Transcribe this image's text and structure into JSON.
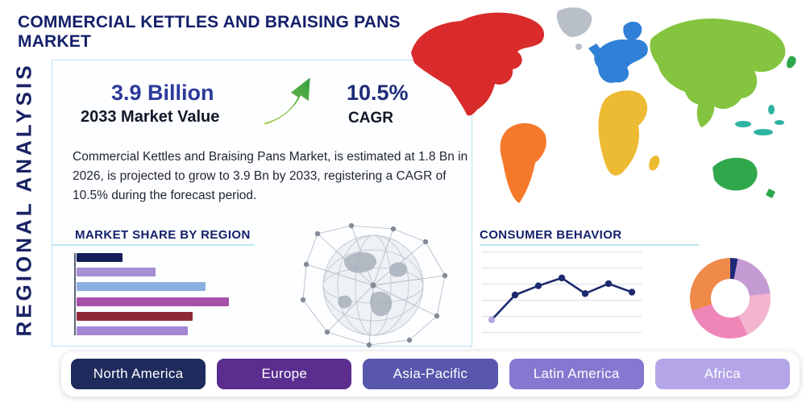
{
  "header": {
    "title": "COMMERCIAL KETTLES AND BRAISING PANS MARKET"
  },
  "side_label": "REGIONAL ANALYSIS",
  "stats": {
    "market_value": "3.9 Billion",
    "market_value_label": "2033 Market Value",
    "cagr_value": "10.5%",
    "cagr_label": "CAGR"
  },
  "description": "Commercial Kettles and Braising Pans Market, is estimated at 1.8 Bn in 2026, is projected to grow to 3.9 Bn by 2033, registering a CAGR of 10.5% during the forecast period.",
  "section_titles": {
    "market_share": "MARKET SHARE BY REGION",
    "consumer_behavior": "CONSUMER BEHAVIOR"
  },
  "region_buttons": [
    {
      "label": "North America",
      "color": "#1e2b5c"
    },
    {
      "label": "Europe",
      "color": "#5a2d8f"
    },
    {
      "label": "Asia-Pacific",
      "color": "#5956ad"
    },
    {
      "label": "Latin America",
      "color": "#8678d0"
    },
    {
      "label": "Africa",
      "color": "#b3a5e8"
    }
  ],
  "map_colors": {
    "north_america": "#d92b2b",
    "greenland": "#b9bfc8",
    "south_america": "#f4792b",
    "europe": "#2f80d6",
    "africa": "#edbb33",
    "asia": "#84c43e",
    "southeast_asia": "#2fb3a3",
    "australia": "#2fa84c"
  },
  "chart_data": [
    {
      "id": "market_share_bars",
      "type": "bar",
      "orientation": "horizontal",
      "title": "MARKET SHARE BY REGION",
      "categories": null,
      "values": [
        29,
        50,
        82,
        97,
        74,
        71
      ],
      "unit": "relative bar length, % of longest bar (axis unlabeled in source)",
      "colors": [
        "#15205a",
        "#a78fd2",
        "#8cb0e0",
        "#a84fa8",
        "#8e2a36",
        "#a586d4"
      ],
      "grid": false,
      "legend": false
    },
    {
      "id": "consumer_behavior_line",
      "type": "line",
      "title": "CONSUMER BEHAVIOR",
      "x": [
        1,
        2,
        3,
        4,
        5,
        6,
        7
      ],
      "values": [
        1.5,
        5.0,
        6.3,
        7.4,
        5.2,
        6.6,
        5.4
      ],
      "ylim": [
        0,
        10
      ],
      "unit": "relative index (axes unlabeled in source)",
      "line_color": "#1e2a6e",
      "marker_colors": [
        "#b9a7e0",
        "#1e2a6e",
        "#1e2a6e",
        "#1e2a6e",
        "#1e2a6e",
        "#1e2a6e",
        "#1e2a6e"
      ],
      "grid": true,
      "legend": false
    },
    {
      "id": "consumer_donut",
      "type": "pie",
      "donut": true,
      "title": "",
      "slices": [
        {
          "value": 3,
          "color": "#1e2a78"
        },
        {
          "value": 20,
          "color": "#c59bd4"
        },
        {
          "value": 20,
          "color": "#f3b4ce"
        },
        {
          "value": 27,
          "color": "#ee86b8"
        },
        {
          "value": 30,
          "color": "#ef8a4a"
        }
      ],
      "unit": "percent, estimated (no labels shown in source)",
      "legend": false
    }
  ]
}
